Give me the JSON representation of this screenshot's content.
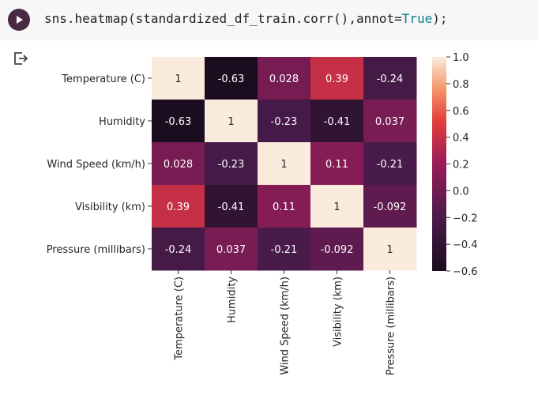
{
  "cell": {
    "code_prefix": "sns.heatmap(standardized_df_train.corr(),annot=",
    "code_keyword": "True",
    "code_suffix": ");",
    "run_icon": "play-icon",
    "output_icon": "output-redirect-icon"
  },
  "chart_data": {
    "type": "heatmap",
    "rows": [
      "Temperature (C)",
      "Humidity",
      "Wind Speed (km/h)",
      "Visibility (km)",
      "Pressure (millibars)"
    ],
    "columns": [
      "Temperature (C)",
      "Humidity",
      "Wind Speed (km/h)",
      "Visibility (km)",
      "Pressure (millibars)"
    ],
    "values": [
      [
        1,
        -0.63,
        0.028,
        0.39,
        -0.24
      ],
      [
        -0.63,
        1,
        -0.23,
        -0.41,
        0.037
      ],
      [
        0.028,
        -0.23,
        1,
        0.11,
        -0.21
      ],
      [
        0.39,
        -0.41,
        0.11,
        1,
        -0.092
      ],
      [
        -0.24,
        0.037,
        -0.21,
        -0.092,
        1
      ]
    ],
    "annotations": [
      [
        "1",
        "-0.63",
        "0.028",
        "0.39",
        "-0.24"
      ],
      [
        "-0.63",
        "1",
        "-0.23",
        "-0.41",
        "0.037"
      ],
      [
        "0.028",
        "-0.23",
        "1",
        "0.11",
        "-0.21"
      ],
      [
        "0.39",
        "-0.41",
        "0.11",
        "1",
        "-0.092"
      ],
      [
        "-0.24",
        "0.037",
        "-0.21",
        "-0.092",
        "1"
      ]
    ],
    "colorbar": {
      "range": [
        -0.6,
        1.0
      ],
      "ticks": [
        1.0,
        0.8,
        0.6,
        0.4,
        0.2,
        0.0,
        -0.2,
        -0.4,
        -0.6
      ],
      "tick_labels": [
        "1.0",
        "0.8",
        "0.6",
        "0.4",
        "0.2",
        "0.0",
        "−0.2",
        "−0.4",
        "−0.6"
      ],
      "colormap": "rocket"
    },
    "annot": true,
    "title": "",
    "xlabel": "",
    "ylabel": ""
  }
}
